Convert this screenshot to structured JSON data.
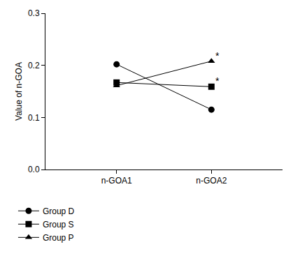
{
  "chart_data": {
    "type": "line",
    "y_label": "Value of n-GOA",
    "categories": [
      "n-GOA1",
      "n-GOA2"
    ],
    "series": [
      {
        "name": "Group D",
        "color": "#000000",
        "marker": "circle",
        "values": [
          0.202,
          0.115
        ]
      },
      {
        "name": "Group S",
        "color": "#000000",
        "marker": "square",
        "values": [
          0.167,
          0.159
        ]
      },
      {
        "name": "Group P",
        "color": "#000000",
        "marker": "triangle-up",
        "values": [
          0.161,
          0.208
        ]
      }
    ],
    "annotations": [
      {
        "text": "*",
        "x": "n-GOA2",
        "y": 0.208
      },
      {
        "text": "*",
        "x": "n-GOA2",
        "y": 0.159
      }
    ],
    "ylim": [
      0,
      0.3
    ],
    "yticks": [
      {
        "value": 0,
        "label": "0.0"
      },
      0.1,
      0.2,
      0.3
    ],
    "grid": false,
    "legend": "bottom left"
  }
}
